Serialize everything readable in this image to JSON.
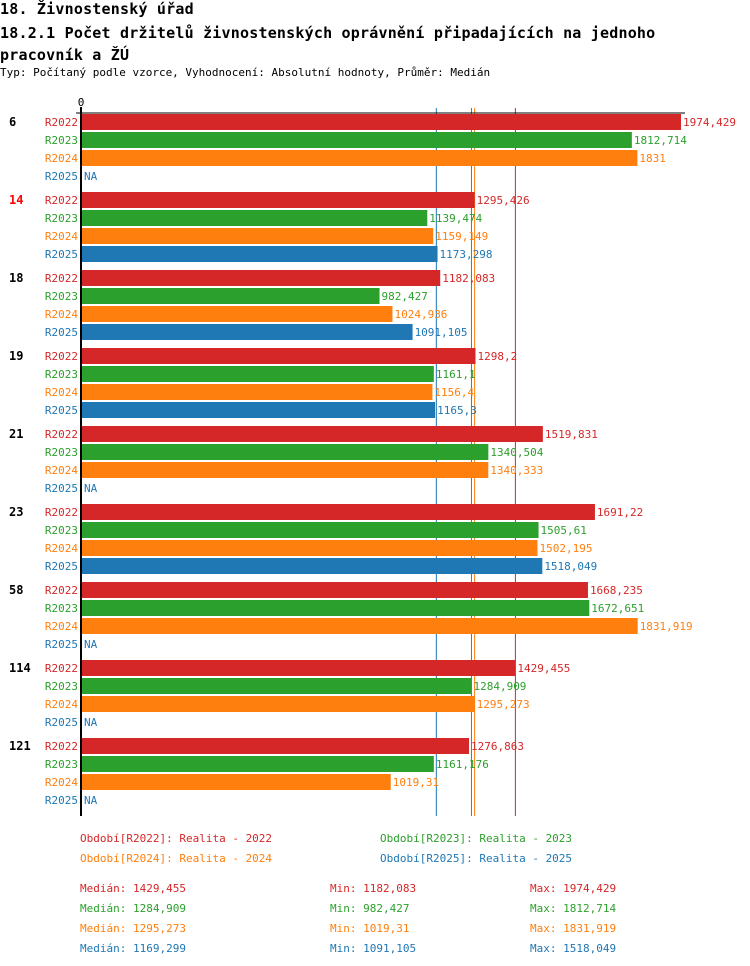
{
  "header": {
    "section_title": "18. Živnostenský úřad",
    "chart_title": "18.2.1 Počet držitelů živnostenských oprávnění připadajících na jednoho pracovník a ŽÚ",
    "subtitle": "Typ: Počítaný podle vzorce, Vyhodnocení: Absolutní hodnoty, Průměr: Medián"
  },
  "colors": {
    "R2022": "#d62728",
    "R2023": "#2ca02c",
    "R2024": "#ff7f0e",
    "R2025": "#1f77b4",
    "highlight_category": "#ff0000",
    "axis": "#000000"
  },
  "chart_data": {
    "type": "bar",
    "orientation": "horizontal",
    "title": "18.2.1 Počet držitelů živnostenských oprávnění připadajících na jednoho pracovník a ŽÚ",
    "xlabel": "",
    "ylabel": "",
    "axis_zero_label": "0",
    "xlim": [
      0,
      1974.429
    ],
    "grid": false,
    "na_label": "NA",
    "categories": [
      "6",
      "14",
      "18",
      "19",
      "21",
      "23",
      "58",
      "114",
      "121"
    ],
    "highlighted_category": "14",
    "series": [
      {
        "name": "R2022",
        "values": [
          1974.429,
          1295.426,
          1182.083,
          1298.2,
          1519.831,
          1691.22,
          1668.235,
          1429.455,
          1276.863
        ],
        "labels": [
          "1974,429",
          "1295,426",
          "1182,083",
          "1298,2",
          "1519,831",
          "1691,22",
          "1668,235",
          "1429,455",
          "1276,863"
        ]
      },
      {
        "name": "R2023",
        "values": [
          1812.714,
          1139.474,
          982.427,
          1161.1,
          1340.504,
          1505.61,
          1672.651,
          1284.909,
          1161.176
        ],
        "labels": [
          "1812,714",
          "1139,474",
          "982,427",
          "1161,1",
          "1340,504",
          "1505,61",
          "1672,651",
          "1284,909",
          "1161,176"
        ]
      },
      {
        "name": "R2024",
        "values": [
          1831,
          1159.149,
          1024.936,
          1156.4,
          1340.333,
          1502.195,
          1831.919,
          1295.273,
          1019.31
        ],
        "labels": [
          "1831",
          "1159,149",
          "1024,936",
          "1156,4",
          "1340,333",
          "1502,195",
          "1831,919",
          "1295,273",
          "1019,31"
        ]
      },
      {
        "name": "R2025",
        "values": [
          null,
          1173.298,
          1091.105,
          1165.3,
          null,
          1518.049,
          null,
          null,
          null
        ],
        "labels": [
          "NA",
          "1173,298",
          "1091,105",
          "1165,3",
          "NA",
          "1518,049",
          "NA",
          "NA",
          "NA"
        ]
      }
    ],
    "median_lines": [
      {
        "series": "R2022",
        "value": 1429.455
      },
      {
        "series": "R2023",
        "value": 1284.909
      },
      {
        "series": "R2024",
        "value": 1295.273
      },
      {
        "series": "R2025",
        "value": 1169.299
      }
    ],
    "legend": [
      {
        "series": "R2022",
        "text": "Období[R2022]: Realita - 2022"
      },
      {
        "series": "R2023",
        "text": "Období[R2023]: Realita - 2023"
      },
      {
        "series": "R2024",
        "text": "Období[R2024]: Realita - 2024"
      },
      {
        "series": "R2025",
        "text": "Období[R2025]: Realita - 2025"
      }
    ],
    "legend_position": "bottom",
    "stats": [
      {
        "series": "R2022",
        "median": "Medián: 1429,455",
        "min": "Min: 1182,083",
        "max": "Max: 1974,429"
      },
      {
        "series": "R2023",
        "median": "Medián: 1284,909",
        "min": "Min: 982,427",
        "max": "Max: 1812,714"
      },
      {
        "series": "R2024",
        "median": "Medián: 1295,273",
        "min": "Min: 1019,31",
        "max": "Max: 1831,919"
      },
      {
        "series": "R2025",
        "median": "Medián: 1169,299",
        "min": "Min: 1091,105",
        "max": "Max: 1518,049"
      }
    ]
  }
}
